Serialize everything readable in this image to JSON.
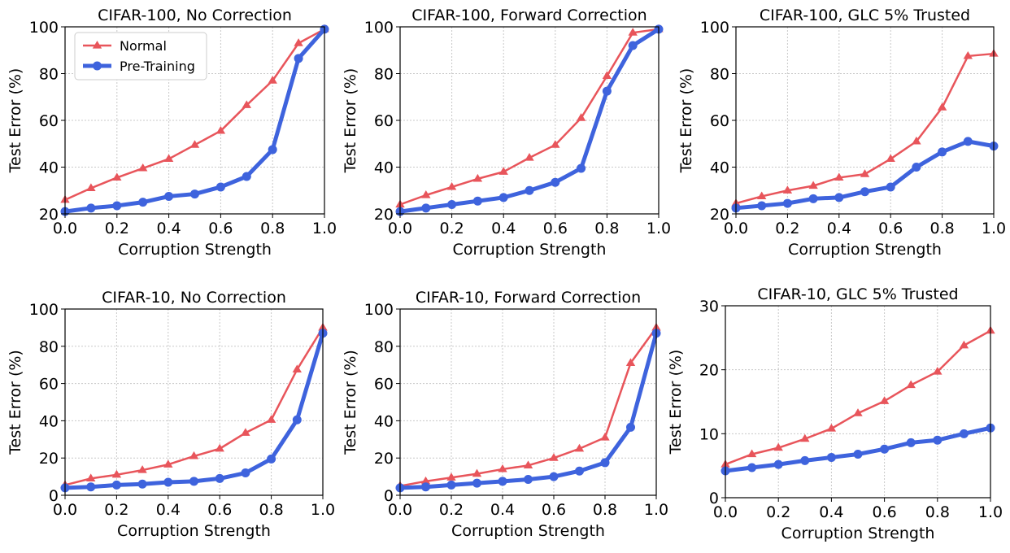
{
  "colors": {
    "normal": "#e8555b",
    "pretraining": "#3e63dd",
    "grid": "#c8c8c8"
  },
  "chart_data": [
    {
      "type": "line",
      "title": "CIFAR-100, No Correction",
      "xlabel": "Corruption Strength",
      "ylabel": "Test Error (%)",
      "xlim": [
        0,
        1
      ],
      "ylim": [
        20,
        100
      ],
      "xticks": [
        "0.0",
        "0.2",
        "0.4",
        "0.6",
        "0.8",
        "1.0"
      ],
      "yticks": [
        "20",
        "40",
        "60",
        "80",
        "100"
      ],
      "grid": true,
      "legend": "top-left",
      "x": [
        0.0,
        0.1,
        0.2,
        0.3,
        0.4,
        0.5,
        0.6,
        0.7,
        0.8,
        0.9,
        1.0
      ],
      "series": [
        {
          "name": "Normal",
          "marker": "triangle",
          "values": [
            26,
            31,
            35.5,
            39.5,
            43.5,
            49.5,
            55.5,
            66.5,
            77,
            93,
            99
          ]
        },
        {
          "name": "Pre-Training",
          "marker": "circle",
          "values": [
            21,
            22.5,
            23.5,
            25,
            27.5,
            28.5,
            31.5,
            36,
            47.5,
            86.5,
            99
          ]
        }
      ]
    },
    {
      "type": "line",
      "title": "CIFAR-100, Forward Correction",
      "xlabel": "Corruption Strength",
      "ylabel": "Test Error (%)",
      "xlim": [
        0,
        1
      ],
      "ylim": [
        20,
        100
      ],
      "xticks": [
        "0.0",
        "0.2",
        "0.4",
        "0.6",
        "0.8",
        "1.0"
      ],
      "yticks": [
        "20",
        "40",
        "60",
        "80",
        "100"
      ],
      "grid": true,
      "x": [
        0.0,
        0.1,
        0.2,
        0.3,
        0.4,
        0.5,
        0.6,
        0.7,
        0.8,
        0.9,
        1.0
      ],
      "series": [
        {
          "name": "Normal",
          "marker": "triangle",
          "values": [
            24,
            28,
            31.5,
            35,
            38,
            44,
            49.5,
            61,
            79,
            97.5,
            99
          ]
        },
        {
          "name": "Pre-Training",
          "marker": "circle",
          "values": [
            21,
            22.5,
            24,
            25.5,
            27,
            30,
            33.5,
            39.5,
            72.5,
            92,
            99
          ]
        }
      ]
    },
    {
      "type": "line",
      "title": "CIFAR-100, GLC 5% Trusted",
      "xlabel": "Corruption Strength",
      "ylabel": "Test Error (%)",
      "xlim": [
        0,
        1
      ],
      "ylim": [
        20,
        100
      ],
      "xticks": [
        "0.0",
        "0.2",
        "0.4",
        "0.6",
        "0.8",
        "1.0"
      ],
      "yticks": [
        "20",
        "40",
        "60",
        "80",
        "100"
      ],
      "grid": true,
      "x": [
        0.0,
        0.1,
        0.2,
        0.3,
        0.4,
        0.5,
        0.6,
        0.7,
        0.8,
        0.9,
        1.0
      ],
      "series": [
        {
          "name": "Normal",
          "marker": "triangle",
          "values": [
            24.5,
            27.5,
            30,
            32,
            35.5,
            37,
            43.5,
            51,
            65.5,
            87.5,
            88.5
          ]
        },
        {
          "name": "Pre-Training",
          "marker": "circle",
          "values": [
            22.5,
            23.5,
            24.5,
            26.5,
            27,
            29.5,
            31.5,
            40,
            46.5,
            51,
            49
          ]
        }
      ]
    },
    {
      "type": "line",
      "title": "CIFAR-10, No Correction",
      "xlabel": "Corruption Strength",
      "ylabel": "Test Error (%)",
      "xlim": [
        0,
        1
      ],
      "ylim": [
        0,
        100
      ],
      "xticks": [
        "0.0",
        "0.2",
        "0.4",
        "0.6",
        "0.8",
        "1.0"
      ],
      "yticks": [
        "0",
        "20",
        "40",
        "60",
        "80",
        "100"
      ],
      "grid": true,
      "x": [
        0.0,
        0.1,
        0.2,
        0.3,
        0.4,
        0.5,
        0.6,
        0.7,
        0.8,
        0.9,
        1.0
      ],
      "series": [
        {
          "name": "Normal",
          "marker": "triangle",
          "values": [
            5.5,
            9,
            11,
            13.5,
            16.5,
            21,
            25,
            33.5,
            40.5,
            67.5,
            90
          ]
        },
        {
          "name": "Pre-Training",
          "marker": "circle",
          "values": [
            4,
            4.5,
            5.5,
            6,
            7,
            7.5,
            9,
            12,
            19.5,
            40.5,
            87
          ]
        }
      ]
    },
    {
      "type": "line",
      "title": "CIFAR-10, Forward Correction",
      "xlabel": "Corruption Strength",
      "ylabel": "Test Error (%)",
      "xlim": [
        0,
        1
      ],
      "ylim": [
        0,
        100
      ],
      "xticks": [
        "0.0",
        "0.2",
        "0.4",
        "0.6",
        "0.8",
        "1.0"
      ],
      "yticks": [
        "0",
        "20",
        "40",
        "60",
        "80",
        "100"
      ],
      "grid": true,
      "x": [
        0.0,
        0.1,
        0.2,
        0.3,
        0.4,
        0.5,
        0.6,
        0.7,
        0.8,
        0.9,
        1.0
      ],
      "series": [
        {
          "name": "Normal",
          "marker": "triangle",
          "values": [
            5,
            7.5,
            9.5,
            11.5,
            14,
            16,
            20,
            25,
            31,
            71,
            90
          ]
        },
        {
          "name": "Pre-Training",
          "marker": "circle",
          "values": [
            4,
            4.5,
            5.5,
            6.5,
            7.5,
            8.5,
            10,
            13,
            17.5,
            36.5,
            87
          ]
        }
      ]
    },
    {
      "type": "line",
      "title": "CIFAR-10, GLC 5% Trusted",
      "xlabel": "Corruption Strength",
      "ylabel": "Test Error (%)",
      "xlim": [
        0,
        1
      ],
      "ylim": [
        0,
        30
      ],
      "xticks": [
        "0.0",
        "0.2",
        "0.4",
        "0.6",
        "0.8",
        "1.0"
      ],
      "yticks": [
        "0",
        "10",
        "20",
        "30"
      ],
      "grid": true,
      "x": [
        0.0,
        0.1,
        0.2,
        0.3,
        0.4,
        0.5,
        0.6,
        0.7,
        0.8,
        0.9,
        1.0
      ],
      "series": [
        {
          "name": "Normal",
          "marker": "triangle",
          "values": [
            5.2,
            6.8,
            7.8,
            9.2,
            10.8,
            13.2,
            15.1,
            17.6,
            19.7,
            23.8,
            26.1
          ]
        },
        {
          "name": "Pre-Training",
          "marker": "circle",
          "values": [
            4.2,
            4.7,
            5.2,
            5.8,
            6.3,
            6.8,
            7.6,
            8.6,
            9.0,
            10.0,
            10.9
          ]
        }
      ]
    }
  ]
}
